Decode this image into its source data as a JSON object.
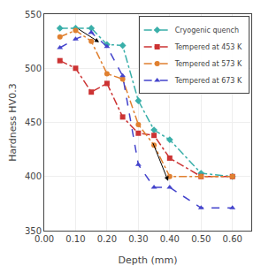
{
  "chart_data": {
    "type": "line",
    "x_label": "Depth (mm)",
    "y_label": "Hardness HV0.3",
    "xlim": [
      0.0,
      0.66
    ],
    "ylim": [
      350,
      550
    ],
    "xticks": [
      {
        "value": 0.0,
        "label": "0.00"
      },
      {
        "value": 0.1,
        "label": "0.10"
      },
      {
        "value": 0.2,
        "label": "0.20"
      },
      {
        "value": 0.3,
        "label": "0.30"
      },
      {
        "value": 0.4,
        "label": "0.40"
      },
      {
        "value": 0.5,
        "label": "0.50"
      },
      {
        "value": 0.6,
        "label": "0.60"
      }
    ],
    "yticks": [
      350,
      400,
      450,
      500,
      550
    ],
    "grid": true,
    "legend": "upper right",
    "series": [
      {
        "name": "Cryogenic quench",
        "color": "#3aafa9",
        "marker": "diamond",
        "line_style": "dashdot",
        "x": [
          0.05,
          0.1,
          0.15,
          0.2,
          0.25,
          0.3,
          0.35,
          0.4,
          0.5,
          0.6
        ],
        "values": [
          537,
          537,
          537,
          522,
          521,
          470,
          443,
          434,
          403,
          400
        ]
      },
      {
        "name": "Tempered at 453 K",
        "color": "#cc3333",
        "marker": "square",
        "line_style": "dashdot",
        "x": [
          0.05,
          0.1,
          0.15,
          0.2,
          0.25,
          0.3,
          0.35,
          0.4,
          0.5,
          0.6
        ],
        "values": [
          507,
          500,
          478,
          486,
          455,
          440,
          438,
          417,
          400,
          400
        ]
      },
      {
        "name": "Tempered at 573 K",
        "color": "#e08030",
        "marker": "circle",
        "line_style": "dashdot",
        "x": [
          0.05,
          0.1,
          0.15,
          0.2,
          0.25,
          0.3,
          0.35,
          0.4,
          0.5,
          0.6
        ],
        "values": [
          529,
          535,
          525,
          495,
          490,
          448,
          429,
          400,
          400,
          400
        ]
      },
      {
        "name": "Tempered at 673 K",
        "color": "#4444cc",
        "marker": "triangle-up",
        "line_style": "dash",
        "x": [
          0.05,
          0.1,
          0.15,
          0.2,
          0.25,
          0.3,
          0.35,
          0.4,
          0.5,
          0.6
        ],
        "values": [
          519,
          527,
          533,
          520,
          493,
          411,
          390,
          390,
          371,
          371
        ]
      }
    ],
    "arrows": [
      {
        "x_tail": 0.105,
        "y_tail": 537,
        "x_head": 0.175,
        "y_head": 524
      },
      {
        "x_tail": 0.345,
        "y_tail": 432,
        "x_head": 0.395,
        "y_head": 396
      }
    ]
  }
}
